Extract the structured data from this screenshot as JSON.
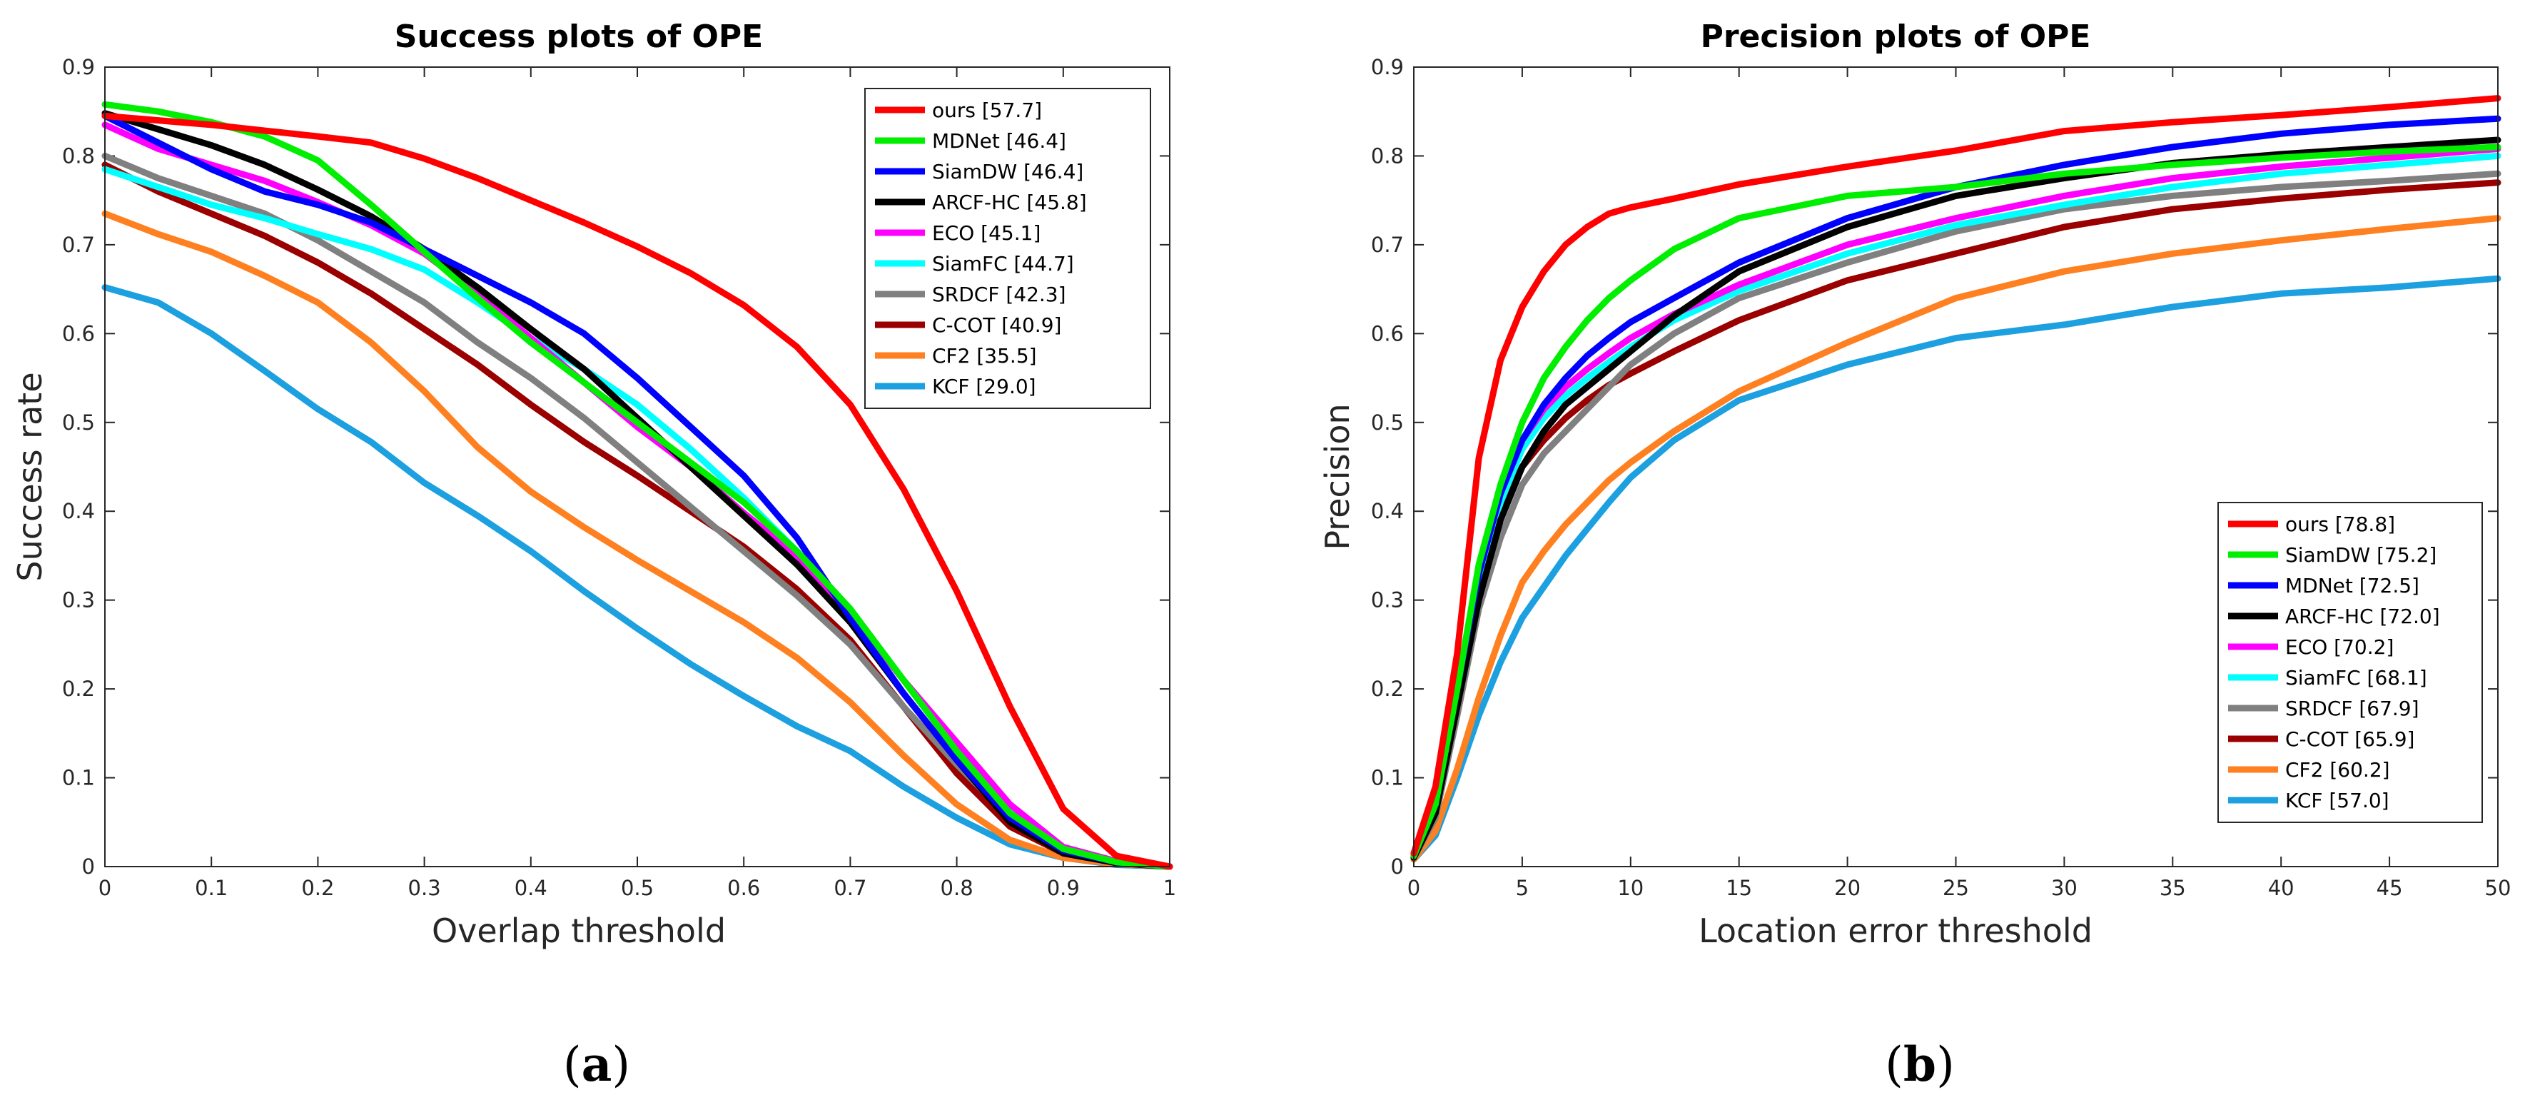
{
  "chart_data": [
    {
      "type": "line",
      "title": "Success plots of OPE",
      "xlabel": "Overlap threshold",
      "ylabel": "Success rate",
      "xlim": [
        0,
        1
      ],
      "ylim": [
        0,
        0.9
      ],
      "xticks": [
        "0",
        "0.1",
        "0.2",
        "0.3",
        "0.4",
        "0.5",
        "0.6",
        "0.7",
        "0.8",
        "0.9",
        "1"
      ],
      "yticks": [
        "0",
        "0.1",
        "0.2",
        "0.3",
        "0.4",
        "0.5",
        "0.6",
        "0.7",
        "0.8",
        "0.9"
      ],
      "grid": false,
      "legend_position": "top-right",
      "panel_label": "a",
      "series": [
        {
          "name": "ours [57.7]",
          "color": "#ff0000",
          "x": [
            0,
            0.1,
            0.2,
            0.25,
            0.3,
            0.35,
            0.4,
            0.45,
            0.5,
            0.55,
            0.6,
            0.65,
            0.7,
            0.75,
            0.8,
            0.85,
            0.9,
            0.95,
            1.0
          ],
          "y": [
            0.845,
            0.835,
            0.822,
            0.815,
            0.797,
            0.775,
            0.75,
            0.725,
            0.698,
            0.668,
            0.632,
            0.585,
            0.52,
            0.425,
            0.31,
            0.18,
            0.065,
            0.012,
            0.0
          ]
        },
        {
          "name": "MDNet [46.4]",
          "color": "#00ee00",
          "x": [
            0,
            0.05,
            0.1,
            0.15,
            0.2,
            0.25,
            0.3,
            0.35,
            0.4,
            0.45,
            0.5,
            0.55,
            0.6,
            0.65,
            0.7,
            0.75,
            0.8,
            0.85,
            0.9,
            0.95,
            1.0
          ],
          "y": [
            0.858,
            0.85,
            0.838,
            0.822,
            0.795,
            0.745,
            0.692,
            0.64,
            0.59,
            0.545,
            0.5,
            0.455,
            0.41,
            0.355,
            0.29,
            0.21,
            0.13,
            0.06,
            0.02,
            0.005,
            0.0
          ]
        },
        {
          "name": "SiamDW [46.4]",
          "color": "#0000ff",
          "x": [
            0,
            0.05,
            0.1,
            0.15,
            0.2,
            0.25,
            0.3,
            0.35,
            0.4,
            0.45,
            0.5,
            0.55,
            0.6,
            0.65,
            0.7,
            0.75,
            0.8,
            0.85,
            0.9,
            0.95,
            1.0
          ],
          "y": [
            0.845,
            0.815,
            0.785,
            0.76,
            0.745,
            0.725,
            0.695,
            0.665,
            0.635,
            0.6,
            0.55,
            0.495,
            0.44,
            0.37,
            0.28,
            0.195,
            0.12,
            0.055,
            0.018,
            0.005,
            0.0
          ]
        },
        {
          "name": "ARCF-HC [45.8]",
          "color": "#000000",
          "x": [
            0,
            0.05,
            0.1,
            0.15,
            0.2,
            0.25,
            0.3,
            0.35,
            0.4,
            0.45,
            0.5,
            0.55,
            0.6,
            0.65,
            0.7,
            0.75,
            0.8,
            0.85,
            0.9,
            0.95,
            1.0
          ],
          "y": [
            0.848,
            0.83,
            0.812,
            0.79,
            0.762,
            0.732,
            0.695,
            0.652,
            0.605,
            0.56,
            0.505,
            0.45,
            0.395,
            0.34,
            0.275,
            0.195,
            0.12,
            0.05,
            0.015,
            0.004,
            0.0
          ]
        },
        {
          "name": "ECO [45.1]",
          "color": "#ff00ff",
          "x": [
            0,
            0.05,
            0.1,
            0.15,
            0.2,
            0.25,
            0.3,
            0.35,
            0.4,
            0.45,
            0.5,
            0.55,
            0.6,
            0.65,
            0.7,
            0.75,
            0.8,
            0.85,
            0.9,
            0.95,
            1.0
          ],
          "y": [
            0.835,
            0.808,
            0.79,
            0.772,
            0.748,
            0.722,
            0.69,
            0.645,
            0.595,
            0.545,
            0.495,
            0.45,
            0.398,
            0.35,
            0.285,
            0.21,
            0.14,
            0.07,
            0.022,
            0.006,
            0.0
          ]
        },
        {
          "name": "SiamFC [44.7]",
          "color": "#00ffff",
          "x": [
            0,
            0.05,
            0.1,
            0.15,
            0.2,
            0.25,
            0.3,
            0.35,
            0.4,
            0.45,
            0.5,
            0.55,
            0.6,
            0.65,
            0.7,
            0.75,
            0.8,
            0.85,
            0.9,
            0.95,
            1.0
          ],
          "y": [
            0.785,
            0.765,
            0.745,
            0.73,
            0.712,
            0.695,
            0.672,
            0.635,
            0.595,
            0.56,
            0.52,
            0.47,
            0.415,
            0.355,
            0.29,
            0.21,
            0.135,
            0.065,
            0.02,
            0.005,
            0.0
          ]
        },
        {
          "name": "SRDCF [42.3]",
          "color": "#808080",
          "x": [
            0,
            0.05,
            0.1,
            0.15,
            0.2,
            0.25,
            0.3,
            0.35,
            0.4,
            0.45,
            0.5,
            0.55,
            0.6,
            0.65,
            0.7,
            0.75,
            0.8,
            0.85,
            0.9,
            0.95,
            1.0
          ],
          "y": [
            0.8,
            0.775,
            0.755,
            0.735,
            0.705,
            0.67,
            0.635,
            0.59,
            0.55,
            0.505,
            0.455,
            0.405,
            0.355,
            0.305,
            0.25,
            0.18,
            0.115,
            0.055,
            0.02,
            0.005,
            0.0
          ]
        },
        {
          "name": "C-COT [40.9]",
          "color": "#9a0000",
          "x": [
            0,
            0.05,
            0.1,
            0.15,
            0.2,
            0.25,
            0.3,
            0.35,
            0.4,
            0.45,
            0.5,
            0.55,
            0.6,
            0.65,
            0.7,
            0.75,
            0.8,
            0.85,
            0.9,
            0.95,
            1.0
          ],
          "y": [
            0.79,
            0.76,
            0.735,
            0.71,
            0.68,
            0.645,
            0.605,
            0.565,
            0.52,
            0.478,
            0.44,
            0.4,
            0.36,
            0.312,
            0.255,
            0.18,
            0.105,
            0.045,
            0.015,
            0.004,
            0.0
          ]
        },
        {
          "name": "CF2 [35.5]",
          "color": "#ff8020",
          "x": [
            0,
            0.05,
            0.1,
            0.15,
            0.2,
            0.25,
            0.3,
            0.35,
            0.4,
            0.45,
            0.5,
            0.55,
            0.6,
            0.65,
            0.7,
            0.75,
            0.8,
            0.85,
            0.9,
            0.95,
            1.0
          ],
          "y": [
            0.735,
            0.712,
            0.692,
            0.665,
            0.635,
            0.59,
            0.535,
            0.472,
            0.422,
            0.382,
            0.345,
            0.31,
            0.275,
            0.235,
            0.185,
            0.125,
            0.07,
            0.03,
            0.01,
            0.003,
            0.0
          ]
        },
        {
          "name": "KCF [29.0]",
          "color": "#1ca0e0",
          "x": [
            0,
            0.05,
            0.1,
            0.15,
            0.2,
            0.25,
            0.3,
            0.35,
            0.4,
            0.45,
            0.5,
            0.55,
            0.6,
            0.65,
            0.7,
            0.75,
            0.8,
            0.85,
            0.9,
            0.95,
            1.0
          ],
          "y": [
            0.652,
            0.635,
            0.6,
            0.558,
            0.515,
            0.478,
            0.432,
            0.395,
            0.355,
            0.31,
            0.268,
            0.228,
            0.192,
            0.158,
            0.13,
            0.09,
            0.055,
            0.025,
            0.01,
            0.002,
            0.0
          ]
        }
      ]
    },
    {
      "type": "line",
      "title": "Precision plots of OPE",
      "xlabel": "Location error threshold",
      "ylabel": "Precision",
      "xlim": [
        0,
        50
      ],
      "ylim": [
        0,
        0.9
      ],
      "xticks": [
        "0",
        "5",
        "10",
        "15",
        "20",
        "25",
        "30",
        "35",
        "40",
        "45",
        "50"
      ],
      "yticks": [
        "0",
        "0.1",
        "0.2",
        "0.3",
        "0.4",
        "0.5",
        "0.6",
        "0.7",
        "0.8",
        "0.9"
      ],
      "grid": false,
      "legend_position": "bottom-right",
      "panel_label": "b",
      "series": [
        {
          "name": "ours [78.8]",
          "color": "#ff0000",
          "x": [
            0,
            1,
            2,
            3,
            4,
            5,
            6,
            7,
            8,
            9,
            10,
            12,
            15,
            20,
            25,
            30,
            35,
            40,
            45,
            50
          ],
          "y": [
            0.015,
            0.09,
            0.24,
            0.46,
            0.57,
            0.63,
            0.67,
            0.7,
            0.72,
            0.735,
            0.742,
            0.752,
            0.768,
            0.788,
            0.806,
            0.828,
            0.838,
            0.846,
            0.855,
            0.865
          ]
        },
        {
          "name": "SiamDW [75.2]",
          "color": "#00ee00",
          "x": [
            0,
            1,
            2,
            3,
            4,
            5,
            6,
            7,
            8,
            9,
            10,
            12,
            15,
            20,
            25,
            30,
            35,
            40,
            45,
            50
          ],
          "y": [
            0.012,
            0.07,
            0.2,
            0.34,
            0.43,
            0.5,
            0.55,
            0.585,
            0.615,
            0.64,
            0.66,
            0.695,
            0.73,
            0.755,
            0.765,
            0.78,
            0.79,
            0.798,
            0.805,
            0.81
          ]
        },
        {
          "name": "MDNet [72.5]",
          "color": "#0000ff",
          "x": [
            0,
            1,
            2,
            3,
            4,
            5,
            6,
            7,
            8,
            9,
            10,
            12,
            15,
            20,
            25,
            30,
            35,
            40,
            45,
            50
          ],
          "y": [
            0.012,
            0.07,
            0.2,
            0.33,
            0.42,
            0.48,
            0.52,
            0.55,
            0.575,
            0.595,
            0.613,
            0.64,
            0.68,
            0.73,
            0.765,
            0.79,
            0.81,
            0.825,
            0.835,
            0.842
          ]
        },
        {
          "name": "ARCF-HC [72.0]",
          "color": "#000000",
          "x": [
            0,
            1,
            2,
            3,
            4,
            5,
            6,
            7,
            8,
            9,
            10,
            12,
            15,
            20,
            25,
            30,
            35,
            40,
            45,
            50
          ],
          "y": [
            0.01,
            0.06,
            0.18,
            0.3,
            0.39,
            0.45,
            0.49,
            0.52,
            0.54,
            0.56,
            0.58,
            0.62,
            0.67,
            0.72,
            0.755,
            0.775,
            0.792,
            0.802,
            0.81,
            0.818
          ]
        },
        {
          "name": "ECO [70.2]",
          "color": "#ff00ff",
          "x": [
            0,
            1,
            2,
            3,
            4,
            5,
            6,
            7,
            8,
            9,
            10,
            12,
            15,
            20,
            25,
            30,
            35,
            40,
            45,
            50
          ],
          "y": [
            0.012,
            0.07,
            0.2,
            0.33,
            0.42,
            0.48,
            0.515,
            0.54,
            0.56,
            0.578,
            0.595,
            0.622,
            0.655,
            0.7,
            0.73,
            0.755,
            0.775,
            0.788,
            0.798,
            0.808
          ]
        },
        {
          "name": "SiamFC [68.1]",
          "color": "#00ffff",
          "x": [
            0,
            1,
            2,
            3,
            4,
            5,
            6,
            7,
            8,
            9,
            10,
            12,
            15,
            20,
            25,
            30,
            35,
            40,
            45,
            50
          ],
          "y": [
            0.012,
            0.065,
            0.19,
            0.32,
            0.41,
            0.47,
            0.505,
            0.53,
            0.55,
            0.568,
            0.585,
            0.615,
            0.648,
            0.69,
            0.722,
            0.745,
            0.765,
            0.78,
            0.79,
            0.8
          ]
        },
        {
          "name": "SRDCF [67.9]",
          "color": "#808080",
          "x": [
            0,
            1,
            2,
            3,
            4,
            5,
            6,
            7,
            8,
            9,
            10,
            12,
            15,
            20,
            25,
            30,
            35,
            40,
            45,
            50
          ],
          "y": [
            0.01,
            0.055,
            0.17,
            0.29,
            0.37,
            0.43,
            0.465,
            0.49,
            0.515,
            0.54,
            0.565,
            0.6,
            0.64,
            0.68,
            0.715,
            0.74,
            0.755,
            0.765,
            0.772,
            0.78
          ]
        },
        {
          "name": "C-COT [65.9]",
          "color": "#9a0000",
          "x": [
            0,
            1,
            2,
            3,
            4,
            5,
            6,
            7,
            8,
            9,
            10,
            12,
            15,
            20,
            25,
            30,
            35,
            40,
            45,
            50
          ],
          "y": [
            0.015,
            0.07,
            0.2,
            0.32,
            0.4,
            0.45,
            0.48,
            0.505,
            0.525,
            0.542,
            0.555,
            0.58,
            0.615,
            0.66,
            0.69,
            0.72,
            0.74,
            0.752,
            0.762,
            0.77
          ]
        },
        {
          "name": "CF2 [60.2]",
          "color": "#ff8020",
          "x": [
            0,
            1,
            2,
            3,
            4,
            5,
            6,
            7,
            8,
            9,
            10,
            12,
            15,
            20,
            25,
            30,
            35,
            40,
            45,
            50
          ],
          "y": [
            0.008,
            0.04,
            0.11,
            0.19,
            0.26,
            0.32,
            0.355,
            0.385,
            0.41,
            0.435,
            0.455,
            0.49,
            0.535,
            0.59,
            0.64,
            0.67,
            0.69,
            0.705,
            0.718,
            0.73
          ]
        },
        {
          "name": "KCF [57.0]",
          "color": "#1ca0e0",
          "x": [
            0,
            1,
            2,
            3,
            4,
            5,
            6,
            7,
            8,
            9,
            10,
            12,
            15,
            20,
            25,
            30,
            35,
            40,
            45,
            50
          ],
          "y": [
            0.008,
            0.035,
            0.1,
            0.17,
            0.23,
            0.28,
            0.315,
            0.35,
            0.38,
            0.41,
            0.438,
            0.48,
            0.525,
            0.565,
            0.595,
            0.61,
            0.63,
            0.645,
            0.652,
            0.662
          ]
        }
      ]
    }
  ]
}
